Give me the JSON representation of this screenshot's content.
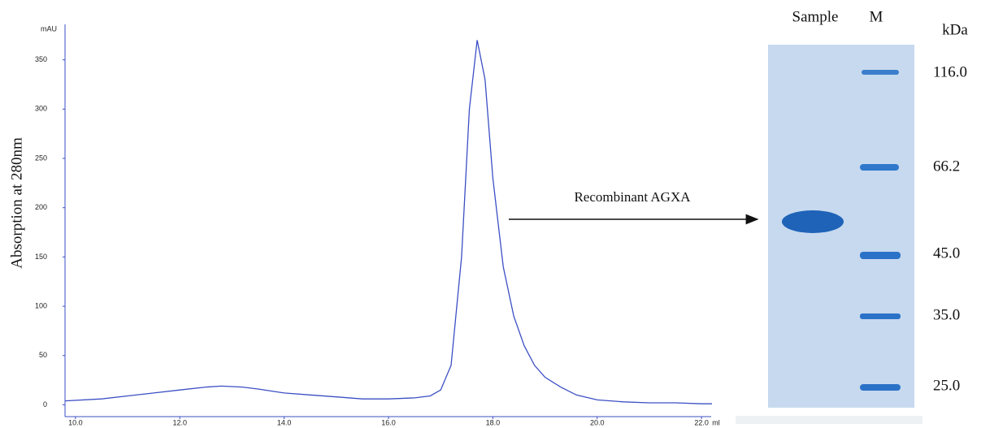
{
  "chart_data": {
    "type": "line",
    "y_unit": "mAU",
    "x_unit": "ml",
    "ylabel": "Absorption at 280nm",
    "annotation": "Recombinant AGXA",
    "color": "#3b4fc4",
    "x": [
      9.8,
      10.5,
      11,
      11.5,
      12,
      12.5,
      12.8,
      13.2,
      13.5,
      14,
      14.5,
      15,
      15.5,
      16,
      16.5,
      16.8,
      17,
      17.2,
      17.4,
      17.55,
      17.7,
      17.85,
      18,
      18.2,
      18.4,
      18.6,
      18.8,
      19,
      19.3,
      19.6,
      20,
      20.5,
      21,
      21.5,
      22,
      22.2
    ],
    "values": [
      4,
      6,
      9,
      12,
      15,
      18,
      19,
      18,
      16,
      12,
      10,
      8,
      6,
      6,
      7,
      9,
      15,
      40,
      150,
      300,
      370,
      330,
      230,
      140,
      90,
      60,
      40,
      28,
      18,
      10,
      5,
      3,
      2,
      2,
      1,
      1
    ],
    "xlim": [
      9.8,
      22.2
    ],
    "ylim": [
      -12,
      386
    ],
    "xticks": [
      {
        "value": 10,
        "label": "10.0"
      },
      {
        "value": 12,
        "label": "12.0"
      },
      {
        "value": 14,
        "label": "14.0"
      },
      {
        "value": 16,
        "label": "16.0"
      },
      {
        "value": 18,
        "label": "18.0"
      },
      {
        "value": 20,
        "label": "20.0"
      },
      {
        "value": 22,
        "label": "22.0"
      }
    ],
    "yticks": [
      0,
      50,
      100,
      150,
      200,
      250,
      300,
      350
    ]
  },
  "gel": {
    "lanes": [
      "Sample",
      "M"
    ],
    "unit": "kDa",
    "markers": [
      "116.0",
      "66.2",
      "45.0",
      "35.0",
      "25.0"
    ]
  }
}
